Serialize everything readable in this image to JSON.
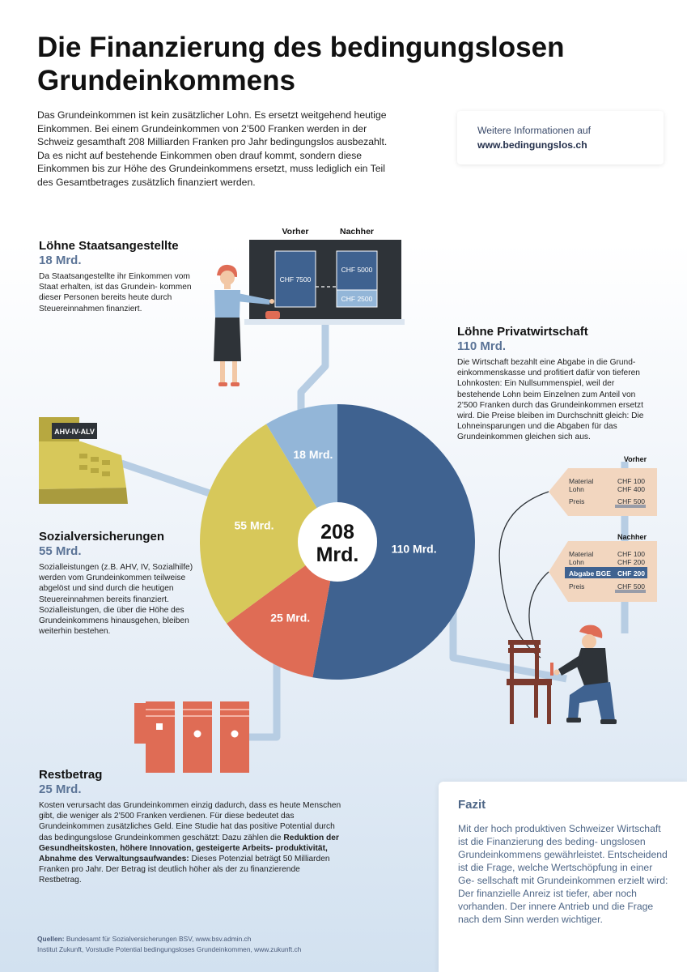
{
  "title": "Die Finanzierung des bedingungslosen Grundeinkommens",
  "intro": "Das Grundeinkommen ist kein zusätzlicher Lohn. Es ersetzt weitgehend heutige Einkommen. Bei einem Grundeinkommen von 2’500 Franken werden in der Schweiz gesamthaft 208 Milliarden Franken pro Jahr bedingungslos ausbezahlt. Da es nicht auf bestehende Einkommen oben drauf kommt, sondern diese Einkommen bis zur Höhe des Grundeinkommens ersetzt, muss lediglich ein Teil des Gesamtbetrages zusätzlich finanziert werden.",
  "info": {
    "line1": "Weitere Informationen auf",
    "line2": "www.bedingungslos.ch"
  },
  "sections": {
    "staat": {
      "title": "Löhne Staatsangestellte",
      "value": "18 Mrd.",
      "text": "Da Staatsangestellte ihr Einkommen vom Staat erhalten, ist das Grundein- kommen dieser Personen bereits heute durch Steuereinnahmen finanziert."
    },
    "privat": {
      "title": "Löhne Privatwirtschaft",
      "value": "110 Mrd.",
      "text": "Die Wirtschaft bezahlt eine Abgabe in die Grund- einkommenskasse und profitiert dafür von tieferen Lohnkosten: Ein Nullsummenspiel, weil der bestehende Lohn beim Einzelnen zum Anteil von 2’500 Franken durch das Grundeinkommen ersetzt wird. Die Preise bleiben im Durchschnitt gleich: Die Lohneinsparungen und die Abgaben für das Grundeinkommen gleichen sich aus."
    },
    "sozial": {
      "title": "Sozialversicherungen",
      "value": "55 Mrd.",
      "text": "Sozialleistungen (z.B. AHV, IV, Sozialhilfe) werden vom Grundeinkommen teilweise abgelöst und sind durch die heutigen Steuereinnahmen bereits finanziert. Sozialleistungen, die über die Höhe des Grundeinkommens hinausgehen, bleiben weiterhin bestehen."
    },
    "rest": {
      "title": "Restbetrag",
      "value": "25 Mrd.",
      "text_a": "Kosten verursacht das Grundeinkommen einzig dadurch, dass es heute Menschen gibt, die weniger als 2’500 Franken verdienen. Für diese bedeutet das Grundeinkommen zusätzliches Geld. Eine Studie hat das positive Potential durch das bedingungslose Grundeinkommen geschätzt: Dazu zählen die ",
      "text_bold": "Reduktion der Gesundheitskosten, höhere Innovation, gesteigerte Arbeits- produktivität, Abnahme des Verwaltungsaufwandes:",
      "text_b": " Dieses Potenzial beträgt 50  Milliarden Franken pro Jahr. Der Betrag ist deutlich höher als der zu finanzierende Restbetrag."
    }
  },
  "chalkboard": {
    "vorher_label": "Vorher",
    "nachher_label": "Nachher",
    "vorher_value": "CHF 7500",
    "nachher_top": "CHF 5000",
    "nachher_bottom": "CHF 2500"
  },
  "register_label": "AHV-IV-ALV",
  "price_tags": {
    "vorher_label": "Vorher",
    "vorher_rows": [
      {
        "label": "Material",
        "value": "CHF 100"
      },
      {
        "label": "Lohn",
        "value": "CHF 400"
      },
      {
        "label": "Preis",
        "value": "CHF 500"
      }
    ],
    "nachher_label": "Nachher",
    "nachher_rows": [
      {
        "label": "Material",
        "value": "CHF 100"
      },
      {
        "label": "Lohn",
        "value": "CHF 200"
      },
      {
        "label": "Abgabe BGE",
        "value": "CHF 200"
      },
      {
        "label": "Preis",
        "value": "CHF 500"
      }
    ]
  },
  "colors": {
    "privat": "#3f6290",
    "rest": "#df6c55",
    "sozial": "#d7c85a",
    "staat": "#93b6d8",
    "accent_text": "#5a7396",
    "board": "#2e3338",
    "connector": "#b7cde3"
  },
  "chart_data": {
    "type": "pie",
    "total": 208,
    "total_label_line1": "208",
    "total_label_line2": "Mrd.",
    "unit": "Mrd.",
    "slices": [
      {
        "category": "Löhne Privatwirtschaft",
        "value": 110,
        "label": "110 Mrd.",
        "color": "#3f6290"
      },
      {
        "category": "Restbetrag",
        "value": 25,
        "label": "25 Mrd.",
        "color": "#df6c55"
      },
      {
        "category": "Sozialversicherungen",
        "value": 55,
        "label": "55 Mrd.",
        "color": "#d7c85a"
      },
      {
        "category": "Löhne Staatsangestellte",
        "value": 18,
        "label": "18 Mrd.",
        "color": "#93b6d8"
      }
    ]
  },
  "fazit": {
    "title": "Fazit",
    "text": "Mit der hoch produktiven Schweizer Wirtschaft ist die Finanzierung des beding- ungslosen Grundeinkommens gewährleistet. Entscheidend ist die Frage, welche Wertschöpfung in einer Ge- sellschaft mit Grundeinkommen erzielt wird: Der finanzielle Anreiz ist tiefer, aber noch vorhanden. Der innere Antrieb und die Frage nach dem Sinn werden wichtiger."
  },
  "sources": {
    "label": "Quellen:",
    "line1": " Bundesamt für Sozialversicherungen BSV, www.bsv.admin.ch",
    "line2": "Institut Zukunft, Vorstudie Potential bedingungsloses Grundeinkommen, www.zukunft.ch"
  }
}
